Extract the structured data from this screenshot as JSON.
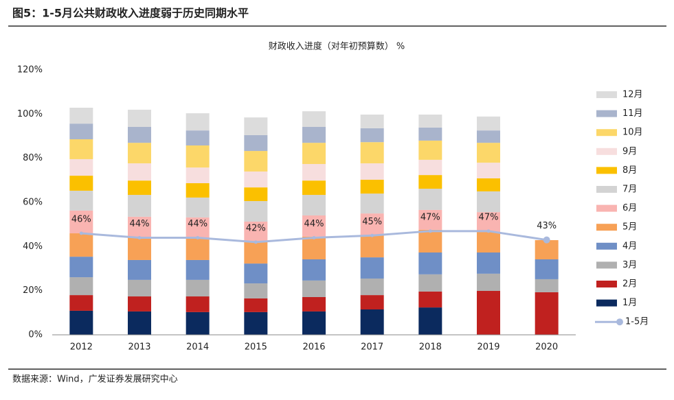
{
  "figure_title": "图5：1-5月公共财政收入进度弱于历史同期水平",
  "source": "数据来源：Wind，广发证券发展研究中心",
  "chart_data": {
    "type": "bar",
    "stacked": true,
    "title": "财政收入进度（对年初预算数） %",
    "categories": [
      "2012",
      "2013",
      "2014",
      "2015",
      "2016",
      "2017",
      "2018",
      "2019",
      "2020"
    ],
    "ylim": [
      0,
      120
    ],
    "yticks": [
      {
        "value": 0,
        "label": "0%"
      },
      {
        "value": 20,
        "label": "20%"
      },
      {
        "value": 40,
        "label": "40%"
      },
      {
        "value": 60,
        "label": "60%"
      },
      {
        "value": 80,
        "label": "80%"
      },
      {
        "value": 100,
        "label": "100%"
      },
      {
        "value": 120,
        "label": "120%"
      }
    ],
    "legend": "right",
    "series": [
      {
        "name": "1月",
        "color": "#0b2a5e",
        "values": [
          10.9,
          10.6,
          10.3,
          10.3,
          10.6,
          11.5,
          12.4,
          null,
          null
        ]
      },
      {
        "name": "2月",
        "color": "#c0211f",
        "values": [
          7.1,
          6.8,
          7.1,
          6.2,
          6.5,
          6.5,
          7.2,
          19.9,
          19.3
        ]
      },
      {
        "name": "3月",
        "color": "#b0b0b0",
        "values": [
          8.1,
          7.5,
          7.5,
          6.8,
          7.5,
          7.5,
          7.8,
          7.8,
          5.9
        ]
      },
      {
        "name": "4月",
        "color": "#6f8fc6",
        "values": [
          9.3,
          9.0,
          9.0,
          9.0,
          9.6,
          9.6,
          9.9,
          9.6,
          9.0
        ]
      },
      {
        "name": "5月",
        "color": "#f7a156",
        "values": [
          10.6,
          10.2,
          9.9,
          9.7,
          10.3,
          10.0,
          10.3,
          9.3,
          8.7
        ]
      },
      {
        "name": "6月",
        "color": "#f9b4b1",
        "values": [
          10.3,
          9.4,
          9.4,
          9.3,
          9.6,
          9.9,
          9.0,
          9.0,
          null
        ]
      },
      {
        "name": "7月",
        "color": "#d3d3d3",
        "values": [
          9.0,
          9.9,
          9.0,
          9.3,
          9.3,
          9.0,
          9.6,
          9.4,
          null
        ]
      },
      {
        "name": "8月",
        "color": "#fbc000",
        "values": [
          6.8,
          6.5,
          6.5,
          6.2,
          6.5,
          6.3,
          6.2,
          5.9,
          null
        ]
      },
      {
        "name": "9月",
        "color": "#f7dede",
        "values": [
          7.5,
          7.8,
          7.1,
          7.2,
          7.5,
          7.4,
          6.9,
          7.1,
          null
        ]
      },
      {
        "name": "10月",
        "color": "#fcd769",
        "values": [
          9.0,
          9.3,
          10.0,
          9.3,
          9.6,
          9.6,
          8.7,
          9.0,
          null
        ]
      },
      {
        "name": "11月",
        "color": "#a9b4cc",
        "values": [
          7.1,
          7.2,
          6.8,
          7.2,
          7.2,
          6.3,
          5.9,
          5.6,
          null
        ]
      },
      {
        "name": "12月",
        "color": "#dcdcdc",
        "values": [
          7.2,
          7.8,
          7.8,
          8.0,
          7.1,
          6.2,
          5.9,
          6.3,
          null
        ]
      },
      {
        "name": "1-5月",
        "type": "line",
        "color": "#a9b9dd",
        "values": [
          46,
          44,
          44,
          42,
          44,
          45,
          47,
          47,
          43
        ],
        "value_labels": [
          "46%",
          "44%",
          "44%",
          "42%",
          "44%",
          "45%",
          "47%",
          "47%",
          "43%"
        ]
      }
    ]
  }
}
